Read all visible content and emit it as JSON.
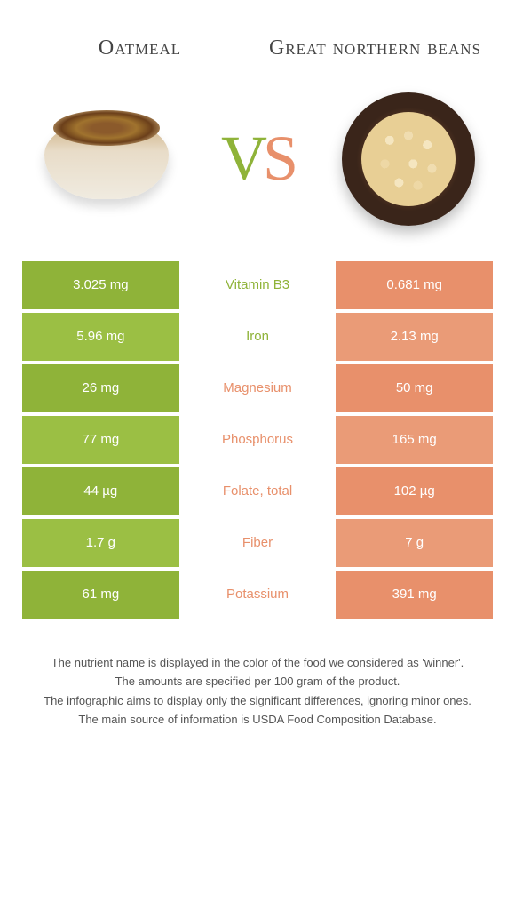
{
  "left_food": "Oatmeal",
  "right_food": "Great northern beans",
  "vs_label": {
    "v": "V",
    "s": "S"
  },
  "colors": {
    "left": "#8fb339",
    "left_alt": "#9bbf44",
    "right": "#e8906b",
    "right_alt": "#ea9b77",
    "winner_left_text": "#8fb339",
    "winner_right_text": "#e8906b"
  },
  "nutrients": [
    {
      "name": "Vitamin B3",
      "left": "3.025 mg",
      "right": "0.681 mg",
      "winner": "left"
    },
    {
      "name": "Iron",
      "left": "5.96 mg",
      "right": "2.13 mg",
      "winner": "left"
    },
    {
      "name": "Magnesium",
      "left": "26 mg",
      "right": "50 mg",
      "winner": "right"
    },
    {
      "name": "Phosphorus",
      "left": "77 mg",
      "right": "165 mg",
      "winner": "right"
    },
    {
      "name": "Folate, total",
      "left": "44 µg",
      "right": "102 µg",
      "winner": "right"
    },
    {
      "name": "Fiber",
      "left": "1.7 g",
      "right": "7 g",
      "winner": "right"
    },
    {
      "name": "Potassium",
      "left": "61 mg",
      "right": "391 mg",
      "winner": "right"
    }
  ],
  "footer": [
    "The nutrient name is displayed in the color of the food we considered as 'winner'.",
    "The amounts are specified per 100 gram of the product.",
    "The infographic aims to display only the significant differences, ignoring minor ones.",
    "The main source of information is USDA Food Composition Database."
  ]
}
